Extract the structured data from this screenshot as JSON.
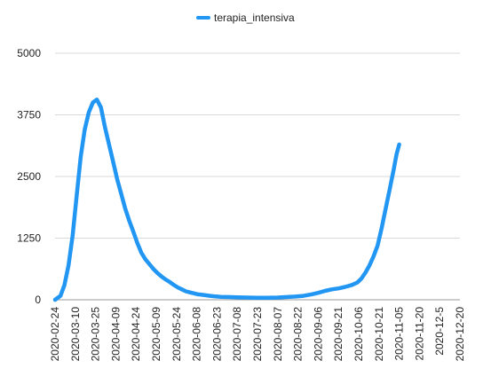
{
  "chart_data": {
    "type": "line",
    "legend": {
      "position": "top-center"
    },
    "grid": true,
    "ylim": [
      0,
      5000
    ],
    "xlim": [
      "2020-02-24",
      "2020-12-20"
    ],
    "y_ticks": [
      0,
      1250,
      2500,
      3750,
      5000
    ],
    "x_ticks": [
      "2020-02-24",
      "2020-03-10",
      "2020-03-25",
      "2020-04-09",
      "2020-04-24",
      "2020-05-09",
      "2020-05-24",
      "2020-06-08",
      "2020-06-23",
      "2020-07-08",
      "2020-07-23",
      "2020-08-07",
      "2020-08-22",
      "2020-09-06",
      "2020-09-21",
      "2020-10-06",
      "2020-10-21",
      "2020-11-05",
      "2020-11-20",
      "2020-12-5",
      "2020-12-20"
    ],
    "series": [
      {
        "name": "terapia_intensiva",
        "color": "#2196F3",
        "points": [
          [
            "2020-02-24",
            0
          ],
          [
            "2020-02-28",
            80
          ],
          [
            "2020-03-02",
            300
          ],
          [
            "2020-03-05",
            700
          ],
          [
            "2020-03-08",
            1300
          ],
          [
            "2020-03-11",
            2100
          ],
          [
            "2020-03-14",
            2900
          ],
          [
            "2020-03-17",
            3450
          ],
          [
            "2020-03-20",
            3800
          ],
          [
            "2020-03-23",
            4000
          ],
          [
            "2020-03-26",
            4060
          ],
          [
            "2020-03-29",
            3900
          ],
          [
            "2020-04-01",
            3500
          ],
          [
            "2020-04-04",
            3150
          ],
          [
            "2020-04-07",
            2800
          ],
          [
            "2020-04-10",
            2450
          ],
          [
            "2020-04-13",
            2150
          ],
          [
            "2020-04-16",
            1850
          ],
          [
            "2020-04-19",
            1600
          ],
          [
            "2020-04-22",
            1380
          ],
          [
            "2020-04-25",
            1150
          ],
          [
            "2020-04-28",
            950
          ],
          [
            "2020-05-01",
            820
          ],
          [
            "2020-05-04",
            720
          ],
          [
            "2020-05-07",
            620
          ],
          [
            "2020-05-10",
            540
          ],
          [
            "2020-05-13",
            470
          ],
          [
            "2020-05-16",
            410
          ],
          [
            "2020-05-19",
            360
          ],
          [
            "2020-05-22",
            300
          ],
          [
            "2020-05-25",
            250
          ],
          [
            "2020-05-28",
            210
          ],
          [
            "2020-05-31",
            170
          ],
          [
            "2020-06-03",
            150
          ],
          [
            "2020-06-06",
            130
          ],
          [
            "2020-06-09",
            110
          ],
          [
            "2020-06-12",
            100
          ],
          [
            "2020-06-15",
            90
          ],
          [
            "2020-06-18",
            80
          ],
          [
            "2020-06-21",
            70
          ],
          [
            "2020-06-26",
            60
          ],
          [
            "2020-07-01",
            55
          ],
          [
            "2020-07-08",
            50
          ],
          [
            "2020-07-15",
            45
          ],
          [
            "2020-07-23",
            40
          ],
          [
            "2020-07-30",
            40
          ],
          [
            "2020-08-07",
            45
          ],
          [
            "2020-08-14",
            55
          ],
          [
            "2020-08-20",
            65
          ],
          [
            "2020-08-26",
            80
          ],
          [
            "2020-09-01",
            110
          ],
          [
            "2020-09-06",
            140
          ],
          [
            "2020-09-11",
            180
          ],
          [
            "2020-09-16",
            210
          ],
          [
            "2020-09-21",
            230
          ],
          [
            "2020-09-26",
            260
          ],
          [
            "2020-10-01",
            300
          ],
          [
            "2020-10-05",
            350
          ],
          [
            "2020-10-08",
            430
          ],
          [
            "2020-10-11",
            550
          ],
          [
            "2020-10-14",
            700
          ],
          [
            "2020-10-17",
            880
          ],
          [
            "2020-10-20",
            1100
          ],
          [
            "2020-10-23",
            1450
          ],
          [
            "2020-10-26",
            1850
          ],
          [
            "2020-10-29",
            2250
          ],
          [
            "2020-11-01",
            2650
          ],
          [
            "2020-11-03",
            2950
          ],
          [
            "2020-11-05",
            3150
          ]
        ]
      }
    ]
  }
}
